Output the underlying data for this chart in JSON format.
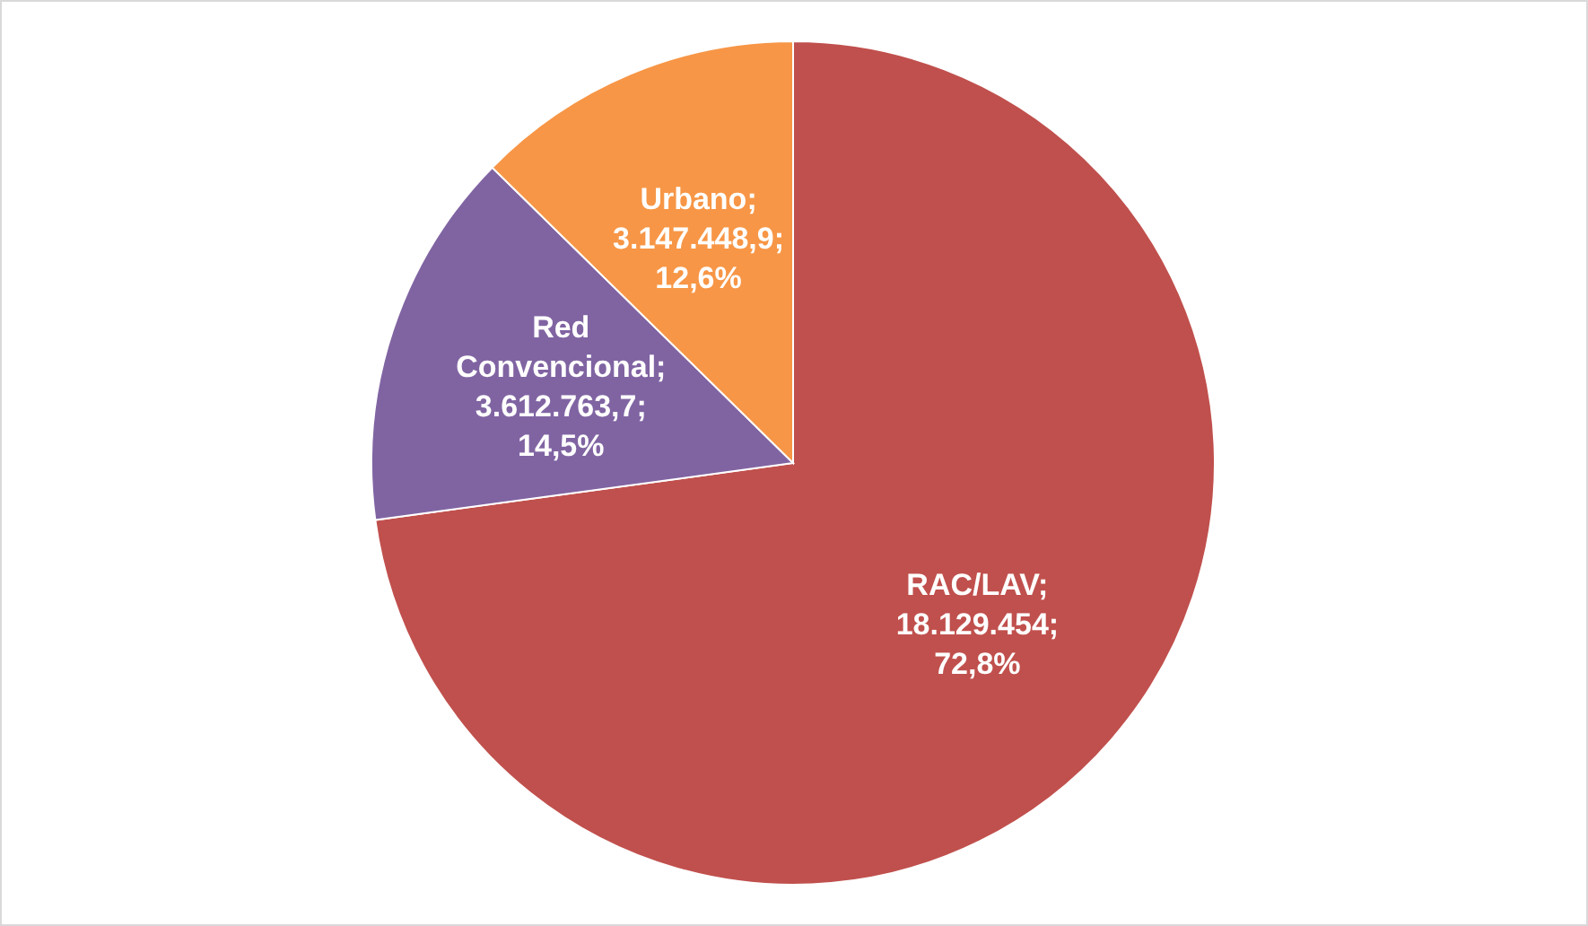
{
  "chart_data": {
    "type": "pie",
    "categories": [
      "RAC/LAV",
      "Red Convencional",
      "Urbano"
    ],
    "values": [
      18129454,
      3612763.7,
      3147448.9
    ],
    "colors": [
      "#c0504d",
      "#8064a2",
      "#f79646"
    ],
    "value_labels": [
      "; 18.129.454; 72,8%",
      "; 3.612.763,7; 14,5%",
      "; 3.147.448,9; 12,6%"
    ]
  }
}
